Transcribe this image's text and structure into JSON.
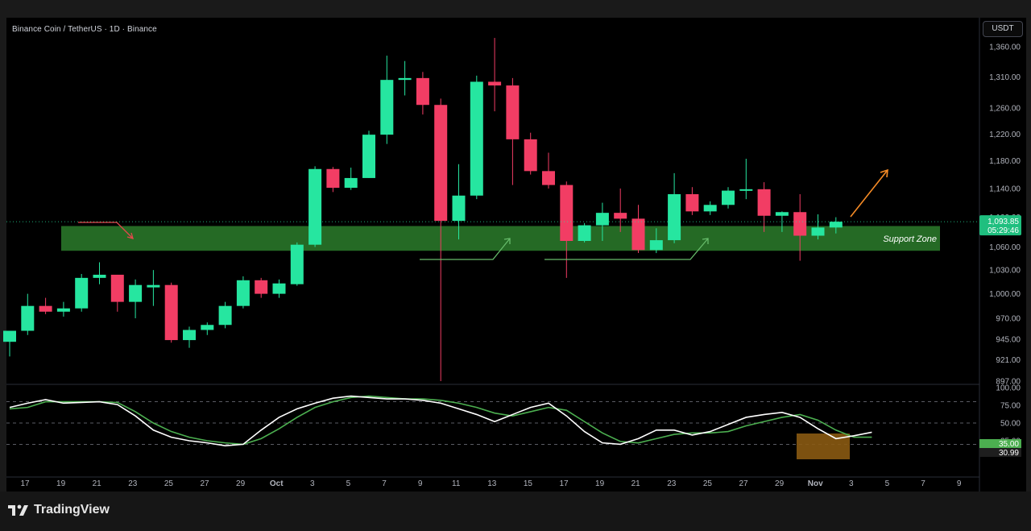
{
  "header": {
    "title": "Binance Coin / TetherUS · 1D · Binance",
    "currency": "USDT"
  },
  "footer": {
    "brand": "TradingView"
  },
  "colors": {
    "up": "#26e6a0",
    "down": "#f23d64",
    "support_fill": "#2c7d2c",
    "stoch_k": "#ffffff",
    "stoch_d": "#4caf50",
    "callout_arrow_red": "#e5484d",
    "callout_arrow_green": "#66bb6a",
    "callout_arrow_orange": "#f58b26",
    "oversold_box": "#8a5a12"
  },
  "chart_data": [
    {
      "type": "candlestick",
      "title": "Binance Coin / TetherUS · 1D · Binance",
      "x_ticks": [
        "17",
        "19",
        "21",
        "23",
        "25",
        "27",
        "29",
        "Oct",
        "3",
        "5",
        "7",
        "9",
        "11",
        "13",
        "15",
        "17",
        "19",
        "21",
        "23",
        "25",
        "27",
        "29",
        "Nov",
        "3",
        "5",
        "7",
        "9"
      ],
      "y_ticks": [
        "1,360.00",
        "1,310.00",
        "1,260.00",
        "1,220.00",
        "1,180.00",
        "1,140.00",
        "1,100.00",
        "1,060.00",
        "1,030.00",
        "1,000.00",
        "970.00",
        "945.00",
        "921.00",
        "897.00"
      ],
      "y_scale": "log",
      "y_range": [
        897,
        1400
      ],
      "candles": [
        {
          "date": "Sep 16",
          "o": 942,
          "h": 955,
          "l": 925,
          "c": 955
        },
        {
          "date": "Sep 17",
          "o": 955,
          "h": 1000,
          "l": 950,
          "c": 985
        },
        {
          "date": "Sep 18",
          "o": 985,
          "h": 995,
          "l": 975,
          "c": 978
        },
        {
          "date": "Sep 19",
          "o": 978,
          "h": 990,
          "l": 972,
          "c": 982
        },
        {
          "date": "Sep 20",
          "o": 982,
          "h": 1025,
          "l": 978,
          "c": 1020
        },
        {
          "date": "Sep 21",
          "o": 1020,
          "h": 1040,
          "l": 1012,
          "c": 1024
        },
        {
          "date": "Sep 22",
          "o": 1024,
          "h": 1024,
          "l": 978,
          "c": 990
        },
        {
          "date": "Sep 23",
          "o": 990,
          "h": 1018,
          "l": 970,
          "c": 1011
        },
        {
          "date": "Sep 24",
          "o": 1008,
          "h": 1030,
          "l": 985,
          "c": 1011
        },
        {
          "date": "Sep 25",
          "o": 1011,
          "h": 1014,
          "l": 941,
          "c": 944
        },
        {
          "date": "Sep 26",
          "o": 944,
          "h": 960,
          "l": 935,
          "c": 956
        },
        {
          "date": "Sep 27",
          "o": 956,
          "h": 965,
          "l": 950,
          "c": 962
        },
        {
          "date": "Sep 28",
          "o": 962,
          "h": 990,
          "l": 958,
          "c": 985
        },
        {
          "date": "Sep 29",
          "o": 985,
          "h": 1022,
          "l": 982,
          "c": 1017
        },
        {
          "date": "Sep 30",
          "o": 1017,
          "h": 1020,
          "l": 995,
          "c": 1000
        },
        {
          "date": "Oct 1",
          "o": 1000,
          "h": 1018,
          "l": 995,
          "c": 1013
        },
        {
          "date": "Oct 2",
          "o": 1012,
          "h": 1066,
          "l": 1010,
          "c": 1063
        },
        {
          "date": "Oct 3",
          "o": 1063,
          "h": 1172,
          "l": 1060,
          "c": 1168
        },
        {
          "date": "Oct 4",
          "o": 1168,
          "h": 1171,
          "l": 1135,
          "c": 1141
        },
        {
          "date": "Oct 5",
          "o": 1141,
          "h": 1170,
          "l": 1138,
          "c": 1155
        },
        {
          "date": "Oct 6",
          "o": 1155,
          "h": 1225,
          "l": 1155,
          "c": 1219
        },
        {
          "date": "Oct 7",
          "o": 1219,
          "h": 1345,
          "l": 1205,
          "c": 1305
        },
        {
          "date": "Oct 8",
          "o": 1305,
          "h": 1336,
          "l": 1280,
          "c": 1308
        },
        {
          "date": "Oct 9",
          "o": 1308,
          "h": 1318,
          "l": 1250,
          "c": 1265
        },
        {
          "date": "Oct 10",
          "o": 1265,
          "h": 1275,
          "l": 897,
          "c": 1095
        },
        {
          "date": "Oct 11",
          "o": 1095,
          "h": 1175,
          "l": 1070,
          "c": 1130
        },
        {
          "date": "Oct 12",
          "o": 1130,
          "h": 1312,
          "l": 1125,
          "c": 1302
        },
        {
          "date": "Oct 13",
          "o": 1302,
          "h": 1375,
          "l": 1255,
          "c": 1296
        },
        {
          "date": "Oct 14",
          "o": 1296,
          "h": 1308,
          "l": 1145,
          "c": 1212
        },
        {
          "date": "Oct 15",
          "o": 1212,
          "h": 1222,
          "l": 1160,
          "c": 1165
        },
        {
          "date": "Oct 16",
          "o": 1165,
          "h": 1192,
          "l": 1140,
          "c": 1145
        },
        {
          "date": "Oct 17",
          "o": 1145,
          "h": 1150,
          "l": 1020,
          "c": 1068
        },
        {
          "date": "Oct 18",
          "o": 1068,
          "h": 1092,
          "l": 1066,
          "c": 1089
        },
        {
          "date": "Oct 19",
          "o": 1089,
          "h": 1120,
          "l": 1068,
          "c": 1106
        },
        {
          "date": "Oct 20",
          "o": 1106,
          "h": 1140,
          "l": 1080,
          "c": 1098
        },
        {
          "date": "Oct 21",
          "o": 1098,
          "h": 1117,
          "l": 1052,
          "c": 1056
        },
        {
          "date": "Oct 22",
          "o": 1056,
          "h": 1085,
          "l": 1052,
          "c": 1069
        },
        {
          "date": "Oct 23",
          "o": 1069,
          "h": 1162,
          "l": 1065,
          "c": 1132
        },
        {
          "date": "Oct 24",
          "o": 1132,
          "h": 1142,
          "l": 1103,
          "c": 1108
        },
        {
          "date": "Oct 25",
          "o": 1108,
          "h": 1122,
          "l": 1103,
          "c": 1117
        },
        {
          "date": "Oct 26",
          "o": 1117,
          "h": 1142,
          "l": 1112,
          "c": 1137
        },
        {
          "date": "Oct 27",
          "o": 1138,
          "h": 1183,
          "l": 1125,
          "c": 1139
        },
        {
          "date": "Oct 28",
          "o": 1139,
          "h": 1149,
          "l": 1080,
          "c": 1102
        },
        {
          "date": "Oct 29",
          "o": 1102,
          "h": 1108,
          "l": 1080,
          "c": 1107
        },
        {
          "date": "Oct 30",
          "o": 1107,
          "h": 1132,
          "l": 1042,
          "c": 1075
        },
        {
          "date": "Oct 31",
          "o": 1075,
          "h": 1104,
          "l": 1070,
          "c": 1086
        },
        {
          "date": "Nov 1",
          "o": 1086,
          "h": 1100,
          "l": 1078,
          "c": 1093.85
        }
      ],
      "current_price": "1,093.85",
      "countdown": "05:29:46",
      "support_zone": {
        "label": "Support Zone",
        "low": 1055,
        "high": 1088
      }
    },
    {
      "type": "line",
      "y_ticks": [
        "100.00",
        "75.00",
        "50.00",
        "25.00"
      ],
      "y_range": [
        0,
        100
      ],
      "levels": [
        80,
        50,
        20
      ],
      "series": [
        {
          "values": [
            72,
            78,
            83,
            78,
            79,
            80,
            76,
            60,
            40,
            30,
            25,
            22,
            18,
            20,
            40,
            58,
            70,
            78,
            85,
            88,
            86,
            84,
            84,
            82,
            78,
            70,
            62,
            52,
            62,
            72,
            78,
            60,
            38,
            22,
            20,
            28,
            40,
            40,
            33,
            38,
            48,
            58,
            62,
            65,
            58,
            42,
            28,
            32,
            37
          ]
        },
        {
          "values": [
            70,
            72,
            80,
            80,
            80,
            80,
            79,
            66,
            50,
            38,
            30,
            25,
            22,
            20,
            28,
            42,
            58,
            72,
            80,
            86,
            88,
            86,
            84,
            84,
            82,
            78,
            72,
            64,
            60,
            66,
            72,
            68,
            52,
            36,
            24,
            22,
            28,
            34,
            36,
            36,
            38,
            46,
            52,
            58,
            62,
            54,
            40,
            30,
            30
          ]
        }
      ],
      "latest_labels": [
        "35.00",
        "30.99"
      ]
    }
  ]
}
